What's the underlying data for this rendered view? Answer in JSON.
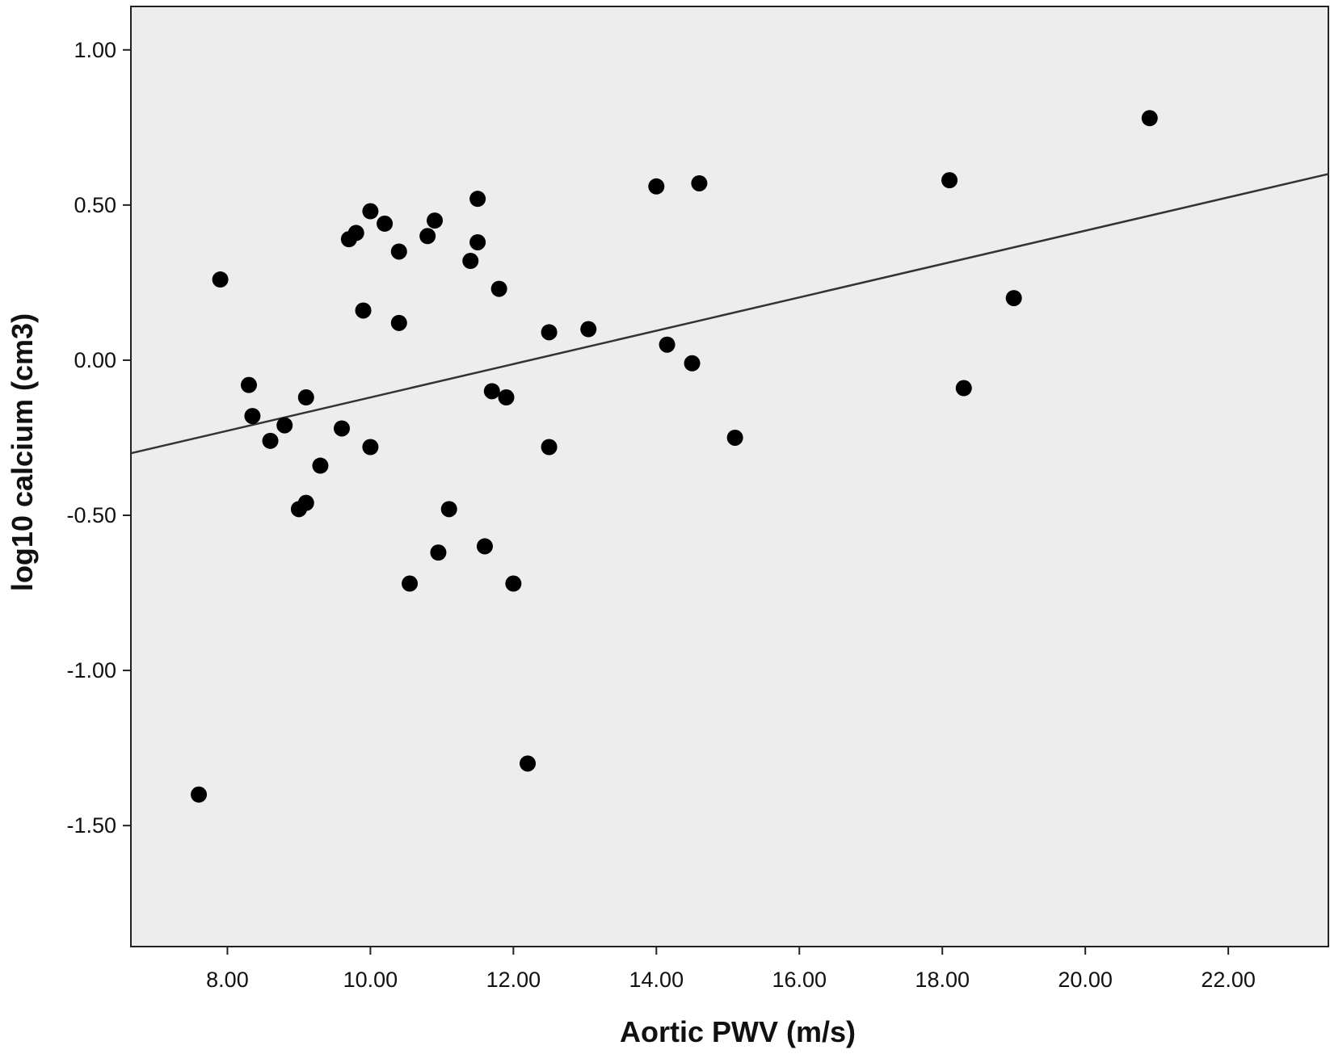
{
  "chart_data": {
    "type": "scatter",
    "xlabel": "Aortic PWV (m/s)",
    "ylabel": "log10 calcium (cm3)",
    "xlim": [
      6.65,
      23.4
    ],
    "ylim": [
      -1.89,
      1.14
    ],
    "x_ticks": [
      8,
      10,
      12,
      14,
      16,
      18,
      20,
      22
    ],
    "x_tick_labels": [
      "8.00",
      "10.00",
      "12.00",
      "14.00",
      "16.00",
      "18.00",
      "20.00",
      "22.00"
    ],
    "y_ticks": [
      1.0,
      0.5,
      0.0,
      -0.5,
      -1.0,
      -1.5
    ],
    "y_tick_labels": [
      "1.00",
      "0.50",
      "0.00",
      "-0.50",
      "-1.00",
      "-1.50"
    ],
    "grid": false,
    "background": "#ededed",
    "point_color": "#000000",
    "line_color": "#333333",
    "points": [
      {
        "x": 7.6,
        "y": -1.4
      },
      {
        "x": 7.9,
        "y": 0.26
      },
      {
        "x": 8.3,
        "y": -0.08
      },
      {
        "x": 8.35,
        "y": -0.18
      },
      {
        "x": 8.6,
        "y": -0.26
      },
      {
        "x": 8.8,
        "y": -0.21
      },
      {
        "x": 9.0,
        "y": -0.48
      },
      {
        "x": 9.1,
        "y": -0.46
      },
      {
        "x": 9.1,
        "y": -0.12
      },
      {
        "x": 9.3,
        "y": -0.34
      },
      {
        "x": 9.6,
        "y": -0.22
      },
      {
        "x": 9.7,
        "y": 0.39
      },
      {
        "x": 9.8,
        "y": 0.41
      },
      {
        "x": 9.9,
        "y": 0.16
      },
      {
        "x": 10.0,
        "y": 0.48
      },
      {
        "x": 10.0,
        "y": -0.28
      },
      {
        "x": 10.2,
        "y": 0.44
      },
      {
        "x": 10.4,
        "y": 0.35
      },
      {
        "x": 10.4,
        "y": 0.12
      },
      {
        "x": 10.55,
        "y": -0.72
      },
      {
        "x": 10.8,
        "y": 0.4
      },
      {
        "x": 10.9,
        "y": 0.45
      },
      {
        "x": 10.95,
        "y": -0.62
      },
      {
        "x": 11.1,
        "y": -0.48
      },
      {
        "x": 11.4,
        "y": 0.32
      },
      {
        "x": 11.5,
        "y": 0.52
      },
      {
        "x": 11.5,
        "y": 0.38
      },
      {
        "x": 11.6,
        "y": -0.6
      },
      {
        "x": 11.7,
        "y": -0.1
      },
      {
        "x": 11.8,
        "y": 0.23
      },
      {
        "x": 11.9,
        "y": -0.12
      },
      {
        "x": 12.0,
        "y": -0.72
      },
      {
        "x": 12.2,
        "y": -1.3
      },
      {
        "x": 12.5,
        "y": 0.09
      },
      {
        "x": 12.5,
        "y": -0.28
      },
      {
        "x": 13.05,
        "y": 0.1
      },
      {
        "x": 14.0,
        "y": 0.56
      },
      {
        "x": 14.15,
        "y": 0.05
      },
      {
        "x": 14.5,
        "y": -0.01
      },
      {
        "x": 14.6,
        "y": 0.57
      },
      {
        "x": 15.1,
        "y": -0.25
      },
      {
        "x": 18.1,
        "y": 0.58
      },
      {
        "x": 18.3,
        "y": -0.09
      },
      {
        "x": 19.0,
        "y": 0.2
      },
      {
        "x": 20.9,
        "y": 0.78
      }
    ],
    "fit_line": {
      "x": [
        6.65,
        23.4
      ],
      "y": [
        -0.3,
        0.6
      ]
    }
  }
}
